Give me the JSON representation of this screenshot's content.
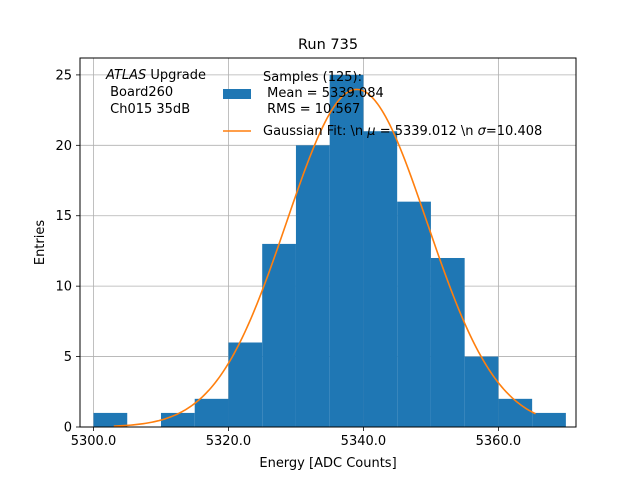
{
  "chart_data": {
    "type": "bar",
    "title": "Run 735",
    "xlabel": "Energy [ADC Counts]",
    "ylabel": "Entries",
    "xlim": [
      5298.0,
      5371.5
    ],
    "ylim": [
      0,
      26.2
    ],
    "grid": true,
    "xticks": [
      5300,
      5320,
      5340,
      5360
    ],
    "xtick_labels": [
      "5300.0",
      "5320.0",
      "5340.0",
      "5360.0"
    ],
    "yticks": [
      0,
      5,
      10,
      15,
      20,
      25
    ],
    "ytick_labels": [
      "0",
      "5",
      "10",
      "15",
      "20",
      "25"
    ],
    "bin_edges": [
      5300,
      5305,
      5310,
      5315,
      5320,
      5325,
      5330,
      5335,
      5340,
      5345,
      5350,
      5355,
      5360,
      5365,
      5370
    ],
    "counts": [
      1,
      0,
      1,
      2,
      6,
      13,
      20,
      25,
      21,
      16,
      12,
      5,
      2,
      1
    ],
    "histogram_color": "#1f77b4",
    "fit": {
      "mean": 5339.012,
      "sigma": 10.408,
      "amplitude": 23.97,
      "x_range": [
        5303,
        5365.5
      ],
      "color": "#ff7f0e"
    },
    "annotation_lines": [
      " Board260",
      " Ch015 35dB"
    ],
    "annotation_title": {
      "italic": "ATLAS",
      "rest": " Upgrade"
    },
    "legend": {
      "position": "top-right",
      "hist_lines": [
        "Samples (125):",
        " Mean = 5339.084",
        " RMS = 10.567"
      ],
      "fit_prefix": "Gaussian Fit: \\n ",
      "fit_mu_symbol": "μ",
      "fit_middle": " = 5339.012 \\n ",
      "fit_sigma_symbol": "σ",
      "fit_suffix": "=10.408"
    }
  }
}
